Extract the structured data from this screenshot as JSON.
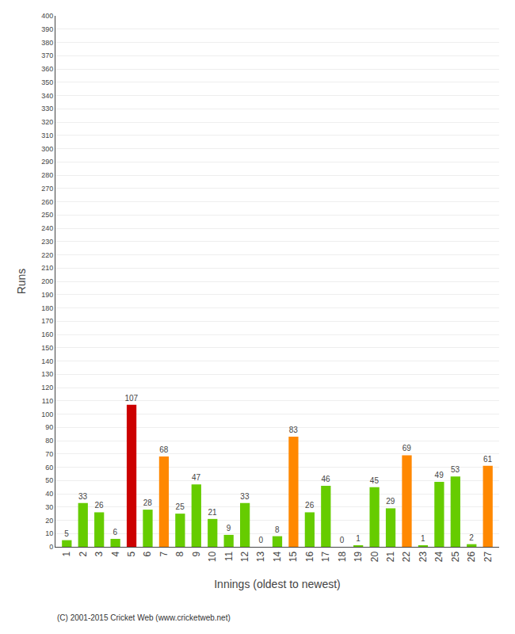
{
  "chart_data": {
    "type": "bar",
    "xlabel": "Innings (oldest to newest)",
    "ylabel": "Runs",
    "x": [
      1,
      2,
      3,
      4,
      5,
      6,
      7,
      8,
      9,
      10,
      11,
      12,
      13,
      14,
      15,
      16,
      17,
      18,
      19,
      20,
      21,
      22,
      23,
      24,
      25,
      26,
      27
    ],
    "values": [
      5,
      33,
      26,
      6,
      107,
      28,
      68,
      25,
      47,
      21,
      9,
      33,
      0,
      8,
      83,
      26,
      46,
      0,
      1,
      45,
      29,
      69,
      1,
      49,
      53,
      2,
      61
    ],
    "colors": [
      "#66cc00",
      "#66cc00",
      "#66cc00",
      "#66cc00",
      "#cc0000",
      "#66cc00",
      "#ff8800",
      "#66cc00",
      "#66cc00",
      "#66cc00",
      "#66cc00",
      "#66cc00",
      "#66cc00",
      "#66cc00",
      "#ff8800",
      "#66cc00",
      "#66cc00",
      "#66cc00",
      "#66cc00",
      "#66cc00",
      "#66cc00",
      "#ff8800",
      "#66cc00",
      "#66cc00",
      "#66cc00",
      "#66cc00",
      "#ff8800"
    ],
    "xlim": [
      0.3,
      27.7
    ],
    "xticks": [
      1,
      2,
      3,
      4,
      5,
      6,
      7,
      8,
      9,
      10,
      11,
      12,
      13,
      14,
      15,
      16,
      17,
      18,
      19,
      20,
      21,
      22,
      23,
      24,
      25,
      26,
      27
    ],
    "ylim": [
      0,
      400
    ],
    "yticks": [
      0,
      10,
      20,
      30,
      40,
      50,
      60,
      70,
      80,
      90,
      100,
      110,
      120,
      130,
      140,
      150,
      160,
      170,
      180,
      190,
      200,
      210,
      220,
      230,
      240,
      250,
      260,
      270,
      280,
      290,
      300,
      310,
      320,
      330,
      340,
      350,
      360,
      370,
      380,
      390,
      400
    ],
    "grid": true,
    "data_labels": true,
    "annotations": [
      "(C) 2001-2015 Cricket Web (www.cricketweb.net)"
    ]
  }
}
